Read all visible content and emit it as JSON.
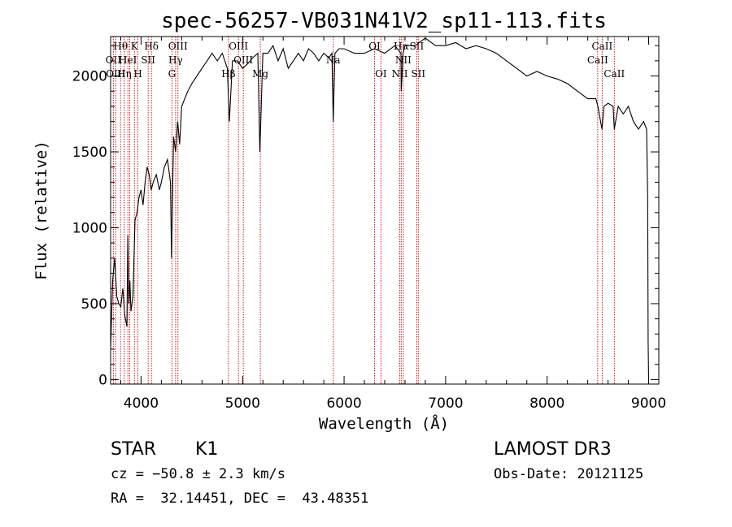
{
  "chart_data": {
    "type": "line",
    "title": "spec-56257-VB031N41V2_sp11-113.fits",
    "xlabel": "Wavelength (Å)",
    "ylabel": "Flux (relative)",
    "xlim": [
      3700,
      9100
    ],
    "ylim": [
      -30,
      2260
    ],
    "xticks": [
      4000,
      5000,
      6000,
      7000,
      8000,
      9000
    ],
    "yticks": [
      0,
      500,
      1000,
      1500,
      2000
    ],
    "grid": false,
    "line_color": "#000000",
    "marker_color": "#cc0000",
    "series": [
      {
        "x": [
          3700,
          3720,
          3740,
          3760,
          3780,
          3800,
          3820,
          3840,
          3860,
          3870,
          3880,
          3890,
          3900,
          3920,
          3940,
          3960,
          3980,
          4000,
          4020,
          4040,
          4060,
          4080,
          4100,
          4120,
          4150,
          4180,
          4200,
          4230,
          4260,
          4290,
          4300,
          4320,
          4340,
          4360,
          4380,
          4400,
          4430,
          4460,
          4500,
          4550,
          4600,
          4650,
          4700,
          4750,
          4800,
          4850,
          4870,
          4900,
          4950,
          5000,
          5050,
          5100,
          5150,
          5170,
          5200,
          5250,
          5300,
          5350,
          5400,
          5450,
          5500,
          5550,
          5600,
          5650,
          5700,
          5750,
          5800,
          5850,
          5880,
          5893,
          5910,
          5950,
          6000,
          6100,
          6200,
          6300,
          6400,
          6500,
          6560,
          6563,
          6580,
          6600,
          6700,
          6800,
          6900,
          7000,
          7100,
          7200,
          7300,
          7400,
          7500,
          7600,
          7700,
          7800,
          7900,
          8000,
          8100,
          8200,
          8300,
          8400,
          8480,
          8500,
          8540,
          8560,
          8600,
          8650,
          8662,
          8700,
          8750,
          8800,
          8850,
          8900,
          8950,
          8980,
          8990,
          8995,
          9000
        ],
        "y": [
          200,
          650,
          800,
          550,
          500,
          480,
          600,
          420,
          350,
          950,
          500,
          650,
          450,
          550,
          1050,
          1100,
          1200,
          1250,
          1150,
          1300,
          1400,
          1350,
          1250,
          1300,
          1350,
          1250,
          1300,
          1400,
          1450,
          1300,
          800,
          1600,
          1500,
          1700,
          1550,
          1800,
          1850,
          1900,
          1950,
          2000,
          2050,
          2100,
          2150,
          2100,
          2150,
          2050,
          1700,
          2100,
          2100,
          2050,
          2080,
          2120,
          2150,
          1500,
          2150,
          2150,
          2200,
          2100,
          2180,
          2050,
          2100,
          2150,
          2100,
          2180,
          2150,
          2100,
          2150,
          2120,
          2150,
          1700,
          2150,
          2180,
          2180,
          2150,
          2150,
          2180,
          2150,
          2200,
          2150,
          1900,
          2150,
          2200,
          2200,
          2250,
          2200,
          2200,
          2220,
          2180,
          2200,
          2180,
          2150,
          2100,
          2050,
          2000,
          2030,
          2000,
          1980,
          1950,
          1900,
          1850,
          1850,
          1800,
          1650,
          1800,
          1820,
          1800,
          1650,
          1800,
          1750,
          1800,
          1700,
          1650,
          1700,
          1650,
          1200,
          250,
          0
        ]
      }
    ],
    "line_markers": [
      {
        "x": 3727,
        "label": "OII",
        "row": 1
      },
      {
        "x": 3750,
        "label": "OIII",
        "row": 2
      },
      {
        "x": 3798,
        "label": "Hθ",
        "row": 0
      },
      {
        "x": 3835,
        "label": "Hη",
        "row": 2
      },
      {
        "x": 3870,
        "label": "HeI",
        "row": 1
      },
      {
        "x": 3889,
        "label": "",
        "row": 0
      },
      {
        "x": 3934,
        "label": "K",
        "row": 0
      },
      {
        "x": 3969,
        "label": "H",
        "row": 2
      },
      {
        "x": 4070,
        "label": "SII",
        "row": 1
      },
      {
        "x": 4102,
        "label": "Hδ",
        "row": 0
      },
      {
        "x": 4304,
        "label": "G",
        "row": 2
      },
      {
        "x": 4340,
        "label": "Hγ",
        "row": 1
      },
      {
        "x": 4363,
        "label": "OIII",
        "row": 0
      },
      {
        "x": 4861,
        "label": "Hβ",
        "row": 2
      },
      {
        "x": 4959,
        "label": "OIII",
        "row": 0
      },
      {
        "x": 5007,
        "label": "OIII",
        "row": 1
      },
      {
        "x": 5175,
        "label": "Mg",
        "row": 2
      },
      {
        "x": 5893,
        "label": "Na",
        "row": 1
      },
      {
        "x": 6300,
        "label": "OI",
        "row": 0
      },
      {
        "x": 6363,
        "label": "OI",
        "row": 2
      },
      {
        "x": 6548,
        "label": "NII",
        "row": 2
      },
      {
        "x": 6563,
        "label": "Hα",
        "row": 0
      },
      {
        "x": 6583,
        "label": "NII",
        "row": 1
      },
      {
        "x": 6716,
        "label": "SII",
        "row": 0
      },
      {
        "x": 6731,
        "label": "SII",
        "row": 2
      },
      {
        "x": 8498,
        "label": "CaII",
        "row": 1
      },
      {
        "x": 8542,
        "label": "CaII",
        "row": 0
      },
      {
        "x": 8662,
        "label": "CaII",
        "row": 2
      }
    ]
  },
  "info": {
    "object_class": "STAR",
    "subclass": "K1",
    "survey": "LAMOST DR3",
    "redshift": "cz = −50.8 ± 2.3 km/s",
    "obs_date": "Obs-Date: 20121125",
    "coords": "RA =  32.14451, DEC =  43.48351"
  }
}
